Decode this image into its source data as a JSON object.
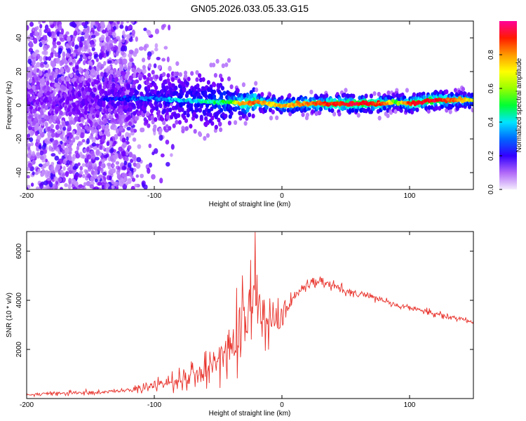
{
  "title": "GN05.2026.033.05.33.G15",
  "chart_data": [
    {
      "type": "heatmap",
      "name": "spectrogram",
      "xlabel": "Height of straight line (km)",
      "ylabel": "Frequency (Hz)",
      "xlim": [
        -200,
        150
      ],
      "ylim": [
        -50,
        50
      ],
      "xticks": [
        -200,
        -100,
        0,
        100
      ],
      "xtick_labels": [
        "-200",
        "-100",
        "0",
        "100"
      ],
      "yticks": [
        -40,
        -20,
        0,
        20,
        40
      ],
      "ytick_labels": [
        "-40",
        "-20",
        "0",
        "20",
        "40"
      ],
      "colorbar": {
        "label": "Normalized spectral amplitude",
        "range": [
          0,
          1
        ],
        "ticks": [
          0,
          0.2,
          0.4,
          0.6,
          0.8
        ],
        "tick_labels": [
          "0.0",
          "0.2",
          "0.4",
          "0.6",
          "0.8"
        ],
        "colormap": [
          "#e8d8f8",
          "#7a00ff",
          "#0000ff",
          "#00ffff",
          "#00ff00",
          "#ffff00",
          "#ff8000",
          "#ff0000",
          "#ff00a0"
        ]
      },
      "ridge": {
        "x": [
          -200,
          -150,
          -120,
          -100,
          -80,
          -60,
          -40,
          -30,
          -20,
          -10,
          0,
          20,
          40,
          60,
          80,
          90,
          100,
          120,
          150
        ],
        "freq": [
          2,
          4,
          4,
          4,
          3,
          2,
          2,
          1,
          2,
          1,
          0,
          1,
          1,
          1,
          1,
          2,
          1,
          3,
          3
        ],
        "amplitude": [
          0.12,
          0.18,
          0.25,
          0.3,
          0.35,
          0.4,
          0.5,
          0.75,
          0.8,
          0.65,
          0.7,
          0.75,
          0.85,
          0.9,
          0.8,
          0.5,
          0.85,
          0.9,
          0.6
        ]
      }
    },
    {
      "type": "line",
      "name": "snr",
      "xlabel": "Height of straight line (km)",
      "ylabel": "SNR (10 * v/v)",
      "xlim": [
        -200,
        150
      ],
      "ylim": [
        0,
        6800
      ],
      "xticks": [
        -200,
        -100,
        0,
        100
      ],
      "xtick_labels": [
        "-200",
        "-100",
        "0",
        "100"
      ],
      "yticks": [
        2000,
        4000,
        6000
      ],
      "ytick_labels": [
        "2000",
        "4000",
        "6000"
      ],
      "color": "#e8322b",
      "series": [
        {
          "name": "SNR",
          "x": [
            -200,
            -180,
            -160,
            -140,
            -120,
            -100,
            -90,
            -80,
            -70,
            -60,
            -50,
            -45,
            -40,
            -35,
            -30,
            -25,
            -20,
            -15,
            -10,
            -5,
            0,
            5,
            10,
            20,
            30,
            40,
            50,
            60,
            70,
            80,
            90,
            100,
            110,
            120,
            130,
            140,
            150
          ],
          "values": [
            150,
            200,
            250,
            250,
            350,
            500,
            650,
            750,
            900,
            1100,
            1500,
            1800,
            2200,
            2700,
            3200,
            3700,
            4000,
            3900,
            3400,
            3300,
            3300,
            3800,
            4200,
            4600,
            4750,
            4600,
            4400,
            4300,
            4150,
            4000,
            3800,
            3700,
            3600,
            3450,
            3350,
            3250,
            3100
          ],
          "noise": [
            80,
            100,
            150,
            120,
            150,
            300,
            450,
            550,
            700,
            900,
            1200,
            1500,
            1700,
            1900,
            2300,
            2100,
            2600,
            2000,
            1600,
            1200,
            900,
            600,
            400,
            300,
            250,
            240,
            230,
            220,
            210,
            200,
            190,
            180,
            170,
            160,
            150,
            140,
            130
          ],
          "peak": {
            "x": -21,
            "y": 6780
          }
        }
      ]
    }
  ]
}
